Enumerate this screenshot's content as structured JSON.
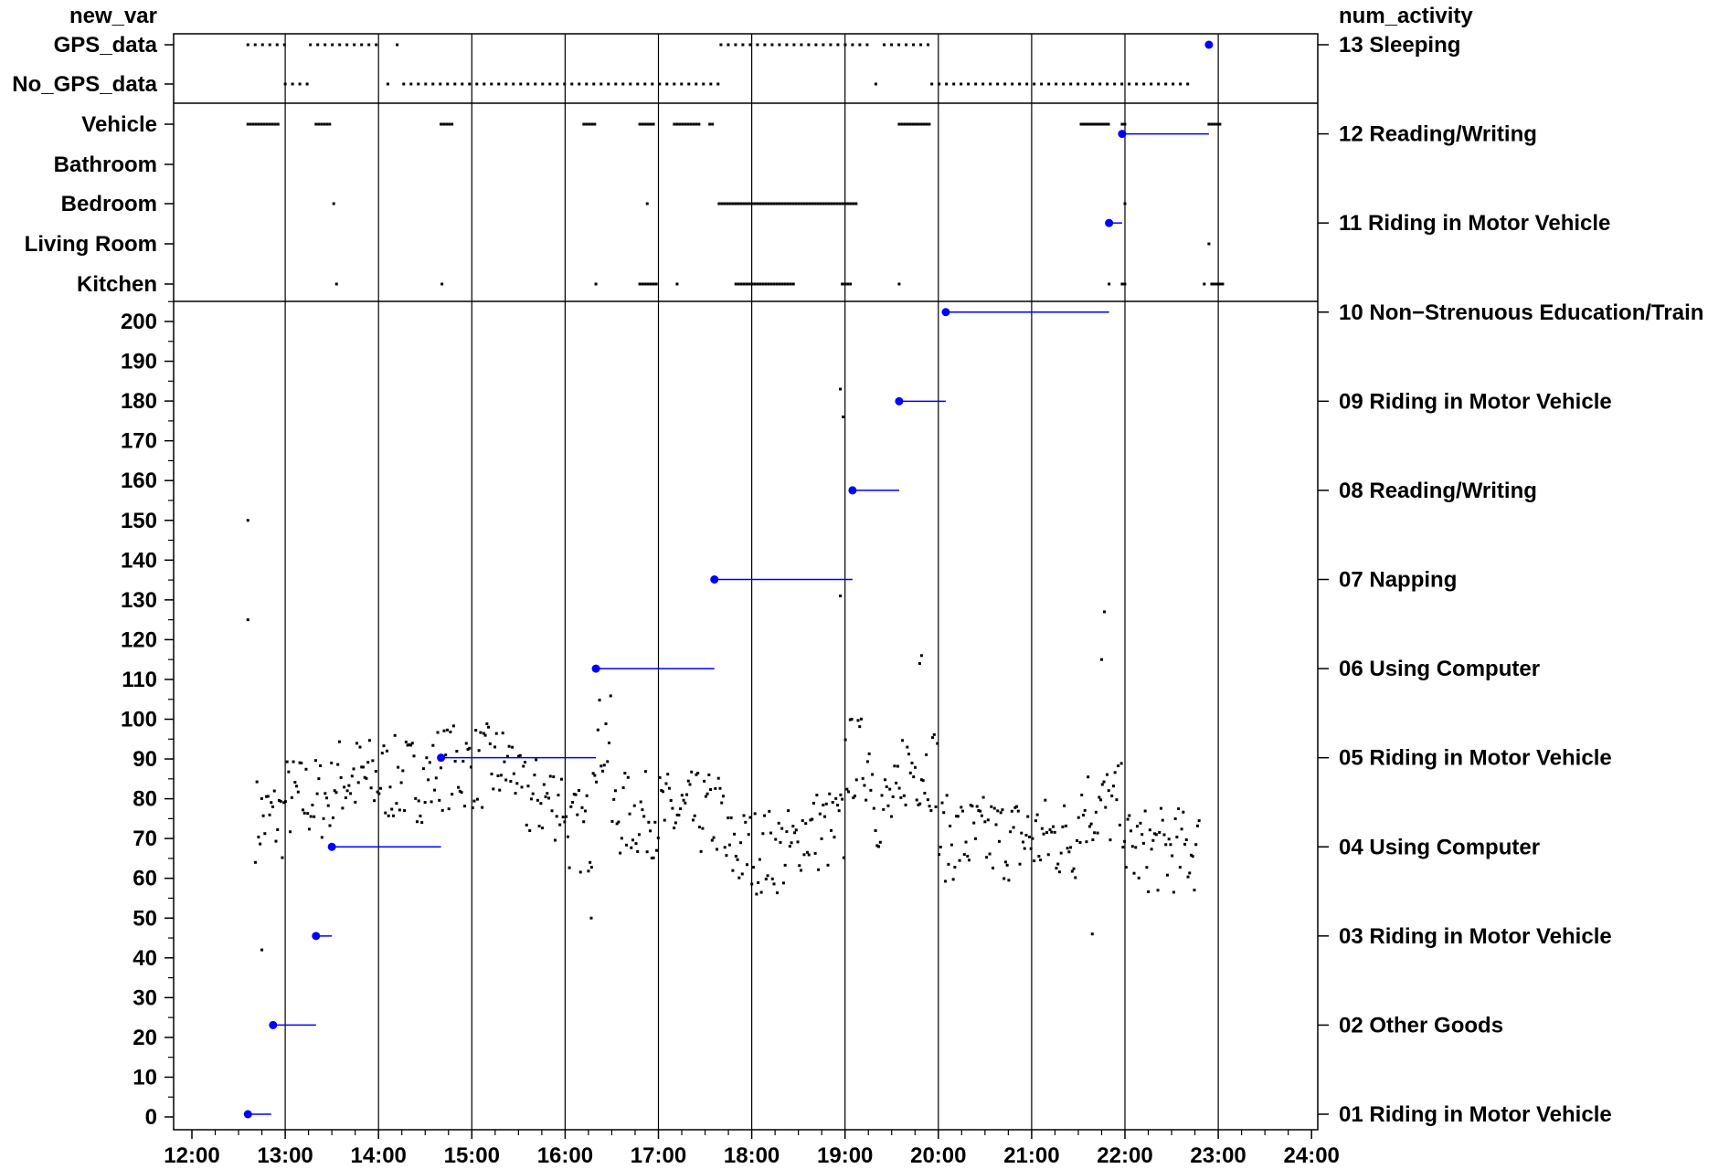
{
  "chart_data": {
    "type": "scatter",
    "left_axis_title": "new_var",
    "right_axis_title": "num_activity",
    "x_ticks": [
      "12:00",
      "13:00",
      "14:00",
      "15:00",
      "16:00",
      "17:00",
      "18:00",
      "19:00",
      "20:00",
      "21:00",
      "22:00",
      "23:00",
      "24:00"
    ],
    "xlim": [
      12,
      24
    ],
    "top_categories": [
      "GPS_data",
      "No_GPS_data"
    ],
    "room_categories": [
      "Vehicle",
      "Bathroom",
      "Bedroom",
      "Living Room",
      "Kitchen"
    ],
    "y_ticks": [
      0,
      10,
      20,
      30,
      40,
      50,
      60,
      70,
      80,
      90,
      100,
      110,
      120,
      130,
      140,
      150,
      160,
      170,
      180,
      190,
      200
    ],
    "ylim": [
      0,
      200
    ],
    "activities": [
      {
        "label": "01 Riding in Motor Vehicle",
        "start": 12.6,
        "end": 12.85
      },
      {
        "label": "02 Other Goods",
        "start": 12.87,
        "end": 13.33
      },
      {
        "label": "03 Riding in Motor Vehicle",
        "start": 13.33,
        "end": 13.5
      },
      {
        "label": "04 Using Computer",
        "start": 13.5,
        "end": 14.67
      },
      {
        "label": "05 Riding in Motor Vehicle",
        "start": 14.67,
        "end": 16.33
      },
      {
        "label": "06 Using Computer",
        "start": 16.33,
        "end": 17.6
      },
      {
        "label": "07 Napping",
        "start": 17.6,
        "end": 19.08
      },
      {
        "label": "08 Reading/Writing",
        "start": 19.08,
        "end": 19.58
      },
      {
        "label": "09 Riding in Motor Vehicle",
        "start": 19.58,
        "end": 20.08
      },
      {
        "label": "10 Non−Strenuous Education/Train",
        "start": 20.08,
        "end": 21.83
      },
      {
        "label": "11 Riding in Motor Vehicle",
        "start": 21.83,
        "end": 21.97
      },
      {
        "label": "12 Reading/Writing",
        "start": 21.97,
        "end": 22.9
      },
      {
        "label": "13 Sleeping",
        "start": 22.9,
        "end": 22.9
      }
    ],
    "category_segments": {
      "GPS_data": [
        [
          12.6,
          13.0
        ],
        [
          13.27,
          14.05
        ],
        [
          14.2,
          14.25
        ],
        [
          17.67,
          19.3
        ],
        [
          19.42,
          19.9
        ]
      ],
      "No_GPS_data": [
        [
          13.0,
          13.25
        ],
        [
          14.1,
          14.15
        ],
        [
          14.27,
          17.65
        ],
        [
          19.33,
          19.38
        ],
        [
          19.93,
          22.73
        ]
      ],
      "Vehicle": [
        [
          12.6,
          12.93
        ],
        [
          13.33,
          13.5
        ],
        [
          14.67,
          14.8
        ],
        [
          16.2,
          16.33
        ],
        [
          16.8,
          16.95
        ],
        [
          17.17,
          17.45
        ],
        [
          17.55,
          17.6
        ],
        [
          19.58,
          19.93
        ],
        [
          21.53,
          21.85
        ],
        [
          21.97,
          22.02
        ],
        [
          22.9,
          23.02
        ]
      ],
      "Bathroom": [],
      "Bedroom": [
        [
          13.52,
          13.53
        ],
        [
          16.88,
          16.89
        ],
        [
          17.65,
          19.13
        ],
        [
          22.0,
          22.01
        ]
      ],
      "Living Room": [
        [
          22.9,
          22.91
        ]
      ],
      "Kitchen": [
        [
          13.55,
          13.57
        ],
        [
          14.68,
          14.69
        ],
        [
          16.33,
          16.34
        ],
        [
          16.8,
          17.0
        ],
        [
          17.2,
          17.22
        ],
        [
          17.83,
          18.45
        ],
        [
          18.97,
          19.08
        ],
        [
          19.58,
          19.6
        ],
        [
          21.83,
          21.85
        ],
        [
          21.97,
          22.0
        ],
        [
          22.85,
          22.87
        ],
        [
          22.93,
          23.05
        ]
      ]
    },
    "outliers": [
      [
        12.6,
        150
      ],
      [
        12.6,
        125
      ],
      [
        12.75,
        42
      ],
      [
        16.28,
        50
      ],
      [
        18.95,
        131
      ],
      [
        21.65,
        46
      ],
      [
        21.78,
        127
      ],
      [
        21.75,
        115
      ],
      [
        18.95,
        183
      ],
      [
        18.98,
        176
      ],
      [
        19.82,
        116
      ],
      [
        19.8,
        114
      ]
    ],
    "lines": {
      "grid": "#000000",
      "activity": "#0000ff",
      "points": "#000000"
    }
  }
}
